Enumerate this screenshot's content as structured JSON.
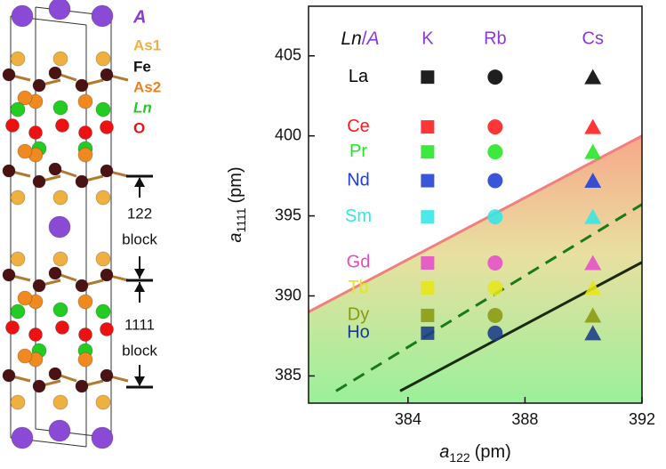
{
  "structure_legend": {
    "a": "A",
    "as1": "As1",
    "fe": "Fe",
    "as2": "As2",
    "ln": "Ln",
    "o": "O",
    "block122_num": "122",
    "block122_word": "block",
    "block1111_num": "1111",
    "block1111_word": "block"
  },
  "chart_data": {
    "type": "scatter",
    "x_label": {
      "symbol": "a",
      "subscript": "122",
      "unit": "(pm)"
    },
    "y_label": {
      "symbol": "a",
      "subscript": "1111",
      "unit": "(pm)"
    },
    "corner_label": {
      "ln": "Ln",
      "sep": "/",
      "a": "A"
    },
    "columns": [
      "K",
      "Rb",
      "Cs"
    ],
    "markers": [
      "square",
      "circle",
      "triangle"
    ],
    "xlim": [
      380.6,
      392
    ],
    "ylim": [
      383.3,
      408.1
    ],
    "xticks": [
      384,
      388,
      392
    ],
    "yticks": [
      385,
      390,
      395,
      400,
      405
    ],
    "series": [
      {
        "name": "La",
        "color": "#000000",
        "x": [
          384.67,
          386.98,
          390.32
        ],
        "values": [
          403.67,
          403.67,
          403.67
        ]
      },
      {
        "name": "Ce",
        "color": "#ff1a1a",
        "x": [
          384.67,
          386.98,
          390.32
        ],
        "values": [
          400.56,
          400.56,
          400.56
        ]
      },
      {
        "name": "Pr",
        "color": "#22e622",
        "x": [
          384.67,
          386.98,
          390.32
        ],
        "values": [
          399.0,
          399.0,
          399.0
        ]
      },
      {
        "name": "Nd",
        "color": "#1e3fd6",
        "x": [
          384.67,
          386.98,
          390.32
        ],
        "values": [
          397.2,
          397.2,
          397.2
        ]
      },
      {
        "name": "Sm",
        "color": "#33e6e6",
        "x": [
          384.67,
          386.98,
          390.32
        ],
        "values": [
          394.94,
          394.94,
          394.94
        ]
      },
      {
        "name": "Gd",
        "color": "#e64cc8",
        "x": [
          384.67,
          386.98,
          390.32
        ],
        "values": [
          392.06,
          392.06,
          392.06
        ]
      },
      {
        "name": "Tb",
        "color": "#e6e619",
        "x": [
          384.67,
          386.98,
          390.32
        ],
        "values": [
          390.5,
          390.5,
          390.5
        ]
      },
      {
        "name": "Dy",
        "color": "#8a9a10",
        "x": [
          384.67,
          386.98,
          390.32
        ],
        "values": [
          388.78,
          388.78,
          388.78
        ]
      },
      {
        "name": "Ho",
        "color": "#1a3a8a",
        "x": [
          384.67,
          386.98,
          390.32
        ],
        "values": [
          387.67,
          387.67,
          387.67
        ]
      }
    ],
    "lines": [
      {
        "color": "#f08080",
        "dash": false,
        "width": 3,
        "x": [
          380.6,
          392
        ],
        "values": [
          389.0,
          400.0
        ]
      },
      {
        "color": "#1a7a1a",
        "dash": true,
        "width": 3,
        "x": [
          381.54,
          392
        ],
        "values": [
          384.06,
          395.72
        ]
      },
      {
        "color": "#1a2a10",
        "dash": false,
        "width": 3,
        "x": [
          383.73,
          392
        ],
        "values": [
          384.06,
          392.1
        ]
      }
    ]
  }
}
